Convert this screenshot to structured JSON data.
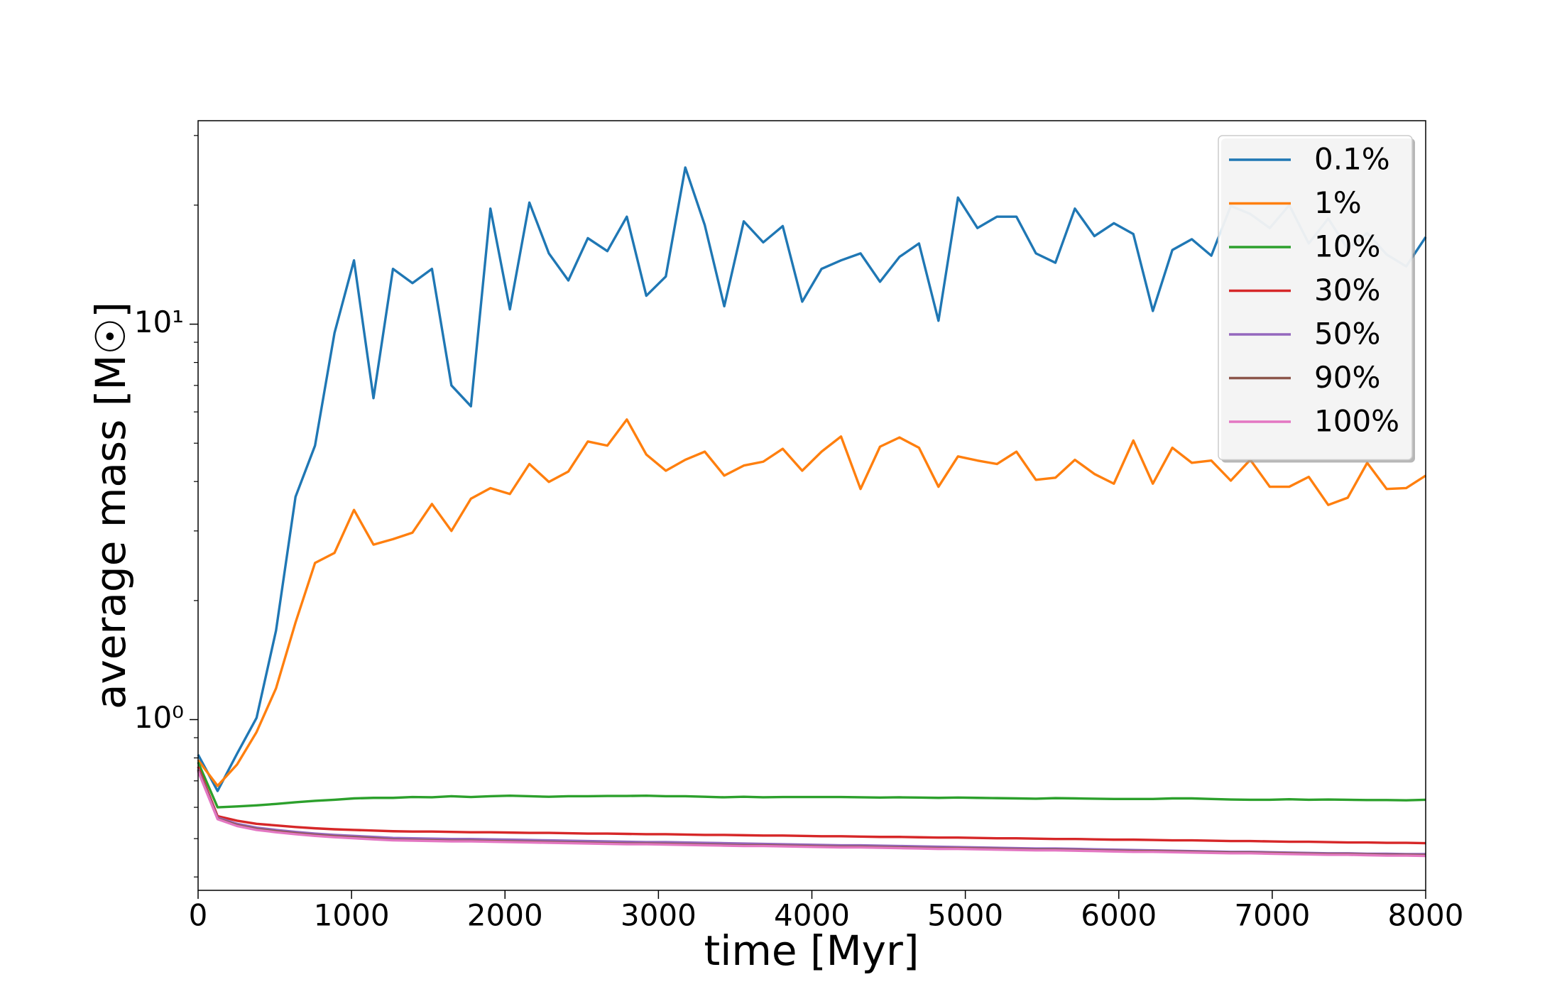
{
  "chart_data": {
    "type": "line",
    "xlabel": "time [Myr]",
    "ylabel": "average mass [M☉]",
    "log_y": true,
    "legend": "upper right",
    "xlim": [
      0,
      8000
    ],
    "xticks": [
      0,
      1000,
      2000,
      3000,
      4000,
      5000,
      6000,
      7000,
      8000
    ],
    "ylim": [
      0.37,
      32.7
    ],
    "yticks": [
      {
        "value": 1,
        "label": "10⁰"
      },
      {
        "value": 10,
        "label": "10¹"
      }
    ],
    "yminorticks": [
      0.4,
      0.5,
      0.6,
      0.7,
      0.8,
      0.9,
      2,
      3,
      4,
      5,
      6,
      7,
      8,
      9,
      20,
      30
    ],
    "x": [
      0,
      127,
      254,
      381,
      508,
      635,
      762,
      889,
      1016,
      1143,
      1270,
      1397,
      1524,
      1651,
      1778,
      1905,
      2032,
      2159,
      2286,
      2413,
      2540,
      2667,
      2794,
      2921,
      3048,
      3175,
      3302,
      3429,
      3556,
      3683,
      3810,
      3937,
      4063,
      4190,
      4317,
      4444,
      4571,
      4698,
      4825,
      4952,
      5079,
      5206,
      5333,
      5460,
      5587,
      5714,
      5841,
      5968,
      6095,
      6222,
      6349,
      6476,
      6603,
      6730,
      6857,
      6984,
      7111,
      7238,
      7365,
      7492,
      7619,
      7746,
      7873,
      8000
    ],
    "series": [
      {
        "name": "0.1%",
        "color": "#1f77b4",
        "values": [
          0.815,
          0.66,
          0.82,
          1.01,
          1.68,
          3.66,
          4.93,
          9.5,
          14.5,
          6.5,
          13.8,
          12.7,
          13.8,
          7.0,
          6.2,
          19.6,
          10.9,
          20.3,
          15.1,
          12.9,
          16.5,
          15.3,
          18.7,
          11.8,
          13.2,
          24.9,
          17.8,
          11.1,
          18.2,
          16.1,
          17.7,
          11.4,
          13.8,
          14.5,
          15.1,
          12.8,
          14.8,
          16.0,
          10.2,
          20.9,
          17.5,
          18.7,
          18.7,
          15.1,
          14.3,
          19.6,
          16.7,
          18.0,
          16.9,
          10.8,
          15.4,
          16.4,
          14.9,
          19.9,
          19.0,
          17.5,
          20.0,
          16.0,
          18.5,
          15.5,
          17.0,
          15.0,
          14.0,
          16.6
        ]
      },
      {
        "name": "1%",
        "color": "#ff7f0e",
        "values": [
          0.79,
          0.68,
          0.77,
          0.93,
          1.2,
          1.76,
          2.49,
          2.64,
          3.39,
          2.77,
          2.86,
          2.97,
          3.51,
          3.0,
          3.62,
          3.85,
          3.72,
          4.43,
          3.99,
          4.24,
          5.05,
          4.93,
          5.74,
          4.68,
          4.26,
          4.54,
          4.76,
          4.14,
          4.39,
          4.49,
          4.84,
          4.26,
          4.76,
          5.2,
          3.83,
          4.9,
          5.17,
          4.87,
          3.88,
          4.63,
          4.52,
          4.43,
          4.76,
          4.04,
          4.09,
          4.54,
          4.18,
          3.95,
          5.08,
          3.95,
          4.87,
          4.46,
          4.52,
          4.02,
          4.54,
          3.88,
          3.88,
          4.11,
          3.49,
          3.64,
          4.46,
          3.83,
          3.85,
          4.14
        ]
      },
      {
        "name": "10%",
        "color": "#2ca02c",
        "values": [
          0.78,
          0.6,
          0.603,
          0.607,
          0.612,
          0.618,
          0.623,
          0.627,
          0.632,
          0.634,
          0.634,
          0.637,
          0.636,
          0.64,
          0.637,
          0.64,
          0.642,
          0.64,
          0.638,
          0.64,
          0.64,
          0.641,
          0.641,
          0.642,
          0.64,
          0.64,
          0.638,
          0.636,
          0.638,
          0.636,
          0.637,
          0.637,
          0.637,
          0.637,
          0.636,
          0.635,
          0.636,
          0.635,
          0.634,
          0.635,
          0.634,
          0.633,
          0.632,
          0.631,
          0.633,
          0.632,
          0.631,
          0.63,
          0.63,
          0.63,
          0.632,
          0.632,
          0.63,
          0.628,
          0.627,
          0.627,
          0.629,
          0.627,
          0.628,
          0.627,
          0.626,
          0.626,
          0.625,
          0.627
        ]
      },
      {
        "name": "30%",
        "color": "#d62728",
        "values": [
          0.76,
          0.57,
          0.555,
          0.545,
          0.54,
          0.535,
          0.531,
          0.528,
          0.526,
          0.524,
          0.522,
          0.521,
          0.521,
          0.52,
          0.519,
          0.519,
          0.518,
          0.517,
          0.517,
          0.516,
          0.515,
          0.515,
          0.514,
          0.513,
          0.513,
          0.512,
          0.511,
          0.511,
          0.51,
          0.509,
          0.509,
          0.508,
          0.507,
          0.507,
          0.506,
          0.505,
          0.505,
          0.504,
          0.503,
          0.503,
          0.502,
          0.501,
          0.501,
          0.5,
          0.499,
          0.499,
          0.498,
          0.497,
          0.497,
          0.496,
          0.495,
          0.495,
          0.494,
          0.493,
          0.493,
          0.492,
          0.491,
          0.491,
          0.49,
          0.489,
          0.489,
          0.488,
          0.488,
          0.487
        ]
      },
      {
        "name": "50%",
        "color": "#9467bd",
        "values": [
          0.75,
          0.565,
          0.545,
          0.533,
          0.526,
          0.52,
          0.515,
          0.511,
          0.508,
          0.505,
          0.502,
          0.501,
          0.5,
          0.499,
          0.499,
          0.498,
          0.497,
          0.496,
          0.495,
          0.494,
          0.493,
          0.492,
          0.491,
          0.49,
          0.49,
          0.489,
          0.488,
          0.487,
          0.486,
          0.485,
          0.484,
          0.483,
          0.482,
          0.481,
          0.481,
          0.48,
          0.479,
          0.478,
          0.477,
          0.476,
          0.475,
          0.474,
          0.473,
          0.472,
          0.472,
          0.471,
          0.47,
          0.469,
          0.468,
          0.467,
          0.466,
          0.465,
          0.464,
          0.463,
          0.463,
          0.462,
          0.461,
          0.46,
          0.459,
          0.459,
          0.458,
          0.458,
          0.457,
          0.457
        ]
      },
      {
        "name": "90%",
        "color": "#8c564b",
        "values": [
          0.745,
          0.562,
          0.541,
          0.529,
          0.522,
          0.516,
          0.511,
          0.507,
          0.504,
          0.501,
          0.497,
          0.496,
          0.495,
          0.494,
          0.494,
          0.493,
          0.492,
          0.491,
          0.49,
          0.489,
          0.488,
          0.487,
          0.486,
          0.486,
          0.485,
          0.484,
          0.483,
          0.482,
          0.481,
          0.481,
          0.48,
          0.479,
          0.478,
          0.477,
          0.477,
          0.476,
          0.475,
          0.474,
          0.473,
          0.473,
          0.472,
          0.471,
          0.47,
          0.469,
          0.469,
          0.468,
          0.467,
          0.466,
          0.465,
          0.465,
          0.464,
          0.463,
          0.462,
          0.461,
          0.461,
          0.46,
          0.459,
          0.458,
          0.457,
          0.457,
          0.456,
          0.455,
          0.455,
          0.454
        ]
      },
      {
        "name": "100%",
        "color": "#e377c2",
        "values": [
          0.74,
          0.56,
          0.538,
          0.526,
          0.519,
          0.513,
          0.508,
          0.504,
          0.501,
          0.498,
          0.495,
          0.494,
          0.493,
          0.492,
          0.492,
          0.491,
          0.49,
          0.489,
          0.488,
          0.487,
          0.486,
          0.485,
          0.484,
          0.484,
          0.483,
          0.482,
          0.481,
          0.48,
          0.479,
          0.479,
          0.478,
          0.477,
          0.476,
          0.475,
          0.475,
          0.474,
          0.473,
          0.472,
          0.471,
          0.471,
          0.47,
          0.469,
          0.468,
          0.467,
          0.467,
          0.466,
          0.465,
          0.464,
          0.463,
          0.463,
          0.462,
          0.461,
          0.46,
          0.459,
          0.459,
          0.458,
          0.457,
          0.456,
          0.455,
          0.455,
          0.454,
          0.453,
          0.453,
          0.452
        ]
      }
    ]
  }
}
